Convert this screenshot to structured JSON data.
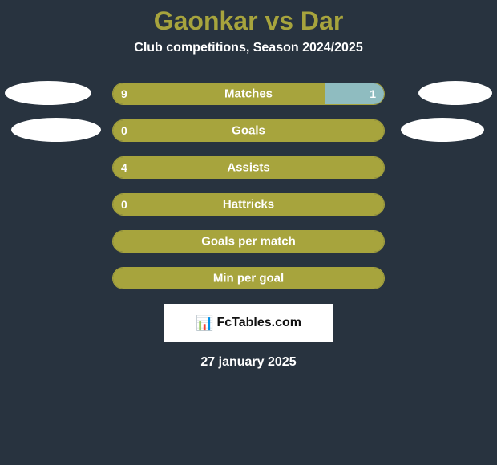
{
  "title": "Gaonkar vs Dar",
  "subtitle": "Club competitions, Season 2024/2025",
  "colors": {
    "bg": "#28333f",
    "accent": "#a7a43d",
    "right_accent": "#8fbcc0",
    "text": "#ffffff"
  },
  "stats": [
    {
      "label": "Matches",
      "left_val": "9",
      "right_val": "1",
      "left_pct": 78,
      "right_pct": 22,
      "show_left_val": true,
      "show_right_val": true,
      "oval_left": "oval-left-1",
      "oval_right": "oval-right-1"
    },
    {
      "label": "Goals",
      "left_val": "0",
      "right_val": "",
      "left_pct": 100,
      "right_pct": 0,
      "show_left_val": true,
      "show_right_val": false,
      "oval_left": "oval-left-2",
      "oval_right": "oval-right-2"
    },
    {
      "label": "Assists",
      "left_val": "4",
      "right_val": "",
      "left_pct": 100,
      "right_pct": 0,
      "show_left_val": true,
      "show_right_val": false,
      "oval_left": "",
      "oval_right": ""
    },
    {
      "label": "Hattricks",
      "left_val": "0",
      "right_val": "",
      "left_pct": 100,
      "right_pct": 0,
      "show_left_val": true,
      "show_right_val": false,
      "oval_left": "",
      "oval_right": ""
    },
    {
      "label": "Goals per match",
      "left_val": "",
      "right_val": "",
      "left_pct": 100,
      "right_pct": 0,
      "show_left_val": false,
      "show_right_val": false,
      "oval_left": "",
      "oval_right": ""
    },
    {
      "label": "Min per goal",
      "left_val": "",
      "right_val": "",
      "left_pct": 100,
      "right_pct": 0,
      "show_left_val": false,
      "show_right_val": false,
      "oval_left": "",
      "oval_right": ""
    }
  ],
  "logo": {
    "icon": "📊",
    "text": "FcTables.com"
  },
  "date": "27 january 2025"
}
